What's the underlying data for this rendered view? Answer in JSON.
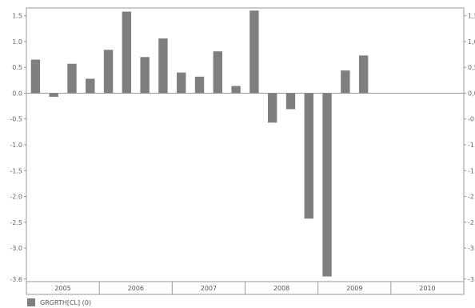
{
  "colors": {
    "bar": "#7f7f7f",
    "axis": "#999999",
    "tick_text": "#666666"
  },
  "chart_data": {
    "type": "bar",
    "title": "",
    "xlabel": "",
    "ylabel": "",
    "ylim": [
      -3.65,
      1.65
    ],
    "y_ticks": [
      "1.5",
      "1.0",
      "0.5",
      "0.0",
      "-0.5",
      "-1.0",
      "-1.5",
      "-2.0",
      "-2.5",
      "-3.0",
      "-3.6"
    ],
    "right_y_ticks": [
      "1,5",
      "1,0",
      "0,5",
      "0,0",
      "-0.",
      "-1.",
      "-1.",
      "-2.",
      "-2.",
      "-3.",
      "-3."
    ],
    "years": [
      "2005",
      "2006",
      "2007",
      "2008",
      "2009",
      "2010"
    ],
    "series": [
      {
        "name": "GRGRTH[CL] (0)",
        "values": [
          0.65,
          -0.07,
          0.57,
          0.28,
          0.84,
          1.58,
          0.7,
          1.06,
          0.4,
          0.32,
          0.81,
          0.14,
          1.6,
          -0.57,
          -0.31,
          -2.43,
          -3.55,
          0.44,
          0.73,
          null,
          null,
          null,
          null,
          null
        ]
      }
    ]
  }
}
